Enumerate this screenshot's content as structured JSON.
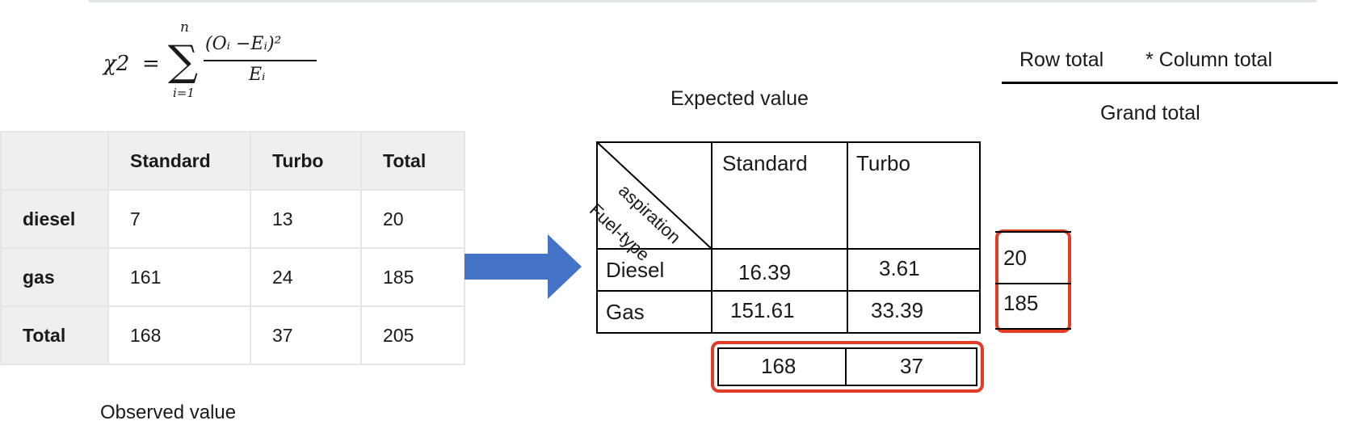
{
  "formula": {
    "lhs": "χ2",
    "eq": "=",
    "sigma": "∑",
    "upper": "n",
    "lower": "i=1",
    "numerator": "(Oᵢ −Eᵢ)²",
    "denominator": "Eᵢ"
  },
  "observed": {
    "caption": "Observed value",
    "columns": [
      "Standard",
      "Turbo",
      "Total"
    ],
    "rows": [
      {
        "label": "diesel",
        "values": [
          "7",
          "13",
          "20"
        ]
      },
      {
        "label": "gas",
        "values": [
          "161",
          "24",
          "185"
        ]
      },
      {
        "label": "Total",
        "values": [
          "168",
          "37",
          "205"
        ]
      }
    ]
  },
  "expected": {
    "caption": "Expected value",
    "corner_top": "aspiration",
    "corner_bottom": "Fuel-type",
    "columns": [
      "Standard",
      "Turbo"
    ],
    "rows": [
      {
        "label": "Diesel",
        "values": [
          "16.39",
          "3.61"
        ]
      },
      {
        "label": "Gas",
        "values": [
          "151.61",
          "33.39"
        ]
      }
    ],
    "row_totals": [
      "20",
      "185"
    ],
    "col_totals": [
      "168",
      "37"
    ]
  },
  "fraction": {
    "numerator_a": "Row total",
    "numerator_b": "* Column total",
    "denominator": "Grand total"
  },
  "colors": {
    "highlight": "#e23b26",
    "arrow": "#4472c4"
  }
}
